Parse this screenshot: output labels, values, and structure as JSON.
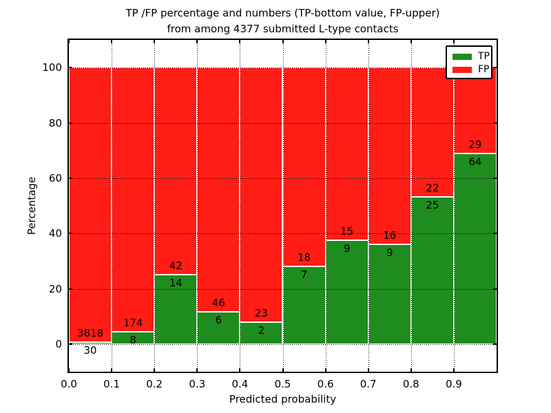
{
  "figure": {
    "title_line1": "TP /FP percentage and numbers (TP-bottom value, FP-upper)",
    "title_line2": "from among 4377 submitted L-type contacts"
  },
  "chart_data": {
    "type": "bar",
    "variant": "stacked-percentage",
    "title": "TP /FP percentage and numbers (TP-bottom value, FP-upper)\nfrom among 4377 submitted L-type contacts",
    "xlabel": "Predicted probability",
    "ylabel": "Percentage",
    "total_contacts": 4377,
    "bin_width": 0.1,
    "categories": [
      "0.0",
      "0.1",
      "0.2",
      "0.3",
      "0.4",
      "0.5",
      "0.6",
      "0.7",
      "0.8",
      "0.9"
    ],
    "series": [
      {
        "name": "TP",
        "color": "#1e8c1e",
        "counts": [
          30,
          8,
          14,
          6,
          2,
          7,
          9,
          9,
          25,
          64
        ]
      },
      {
        "name": "FP",
        "color": "#ff1d16",
        "counts": [
          3818,
          174,
          42,
          46,
          23,
          18,
          15,
          16,
          22,
          29
        ]
      }
    ],
    "tp_percent": [
      0.78,
      4.4,
      25.0,
      11.54,
      8.0,
      28.0,
      37.5,
      36.0,
      53.19,
      68.82
    ],
    "xticks": [
      "0.0",
      "0.1",
      "0.2",
      "0.3",
      "0.4",
      "0.5",
      "0.6",
      "0.7",
      "0.8",
      "0.9"
    ],
    "yticks": [
      0,
      20,
      40,
      60,
      80,
      100
    ],
    "xlim": [
      0.0,
      1.0
    ],
    "ylim": [
      -10,
      110
    ],
    "grid": "dotted",
    "legend": {
      "position": "upper-right",
      "entries": [
        {
          "label": "TP",
          "color": "#1e8c1e"
        },
        {
          "label": "FP",
          "color": "#ff1d16"
        }
      ]
    }
  }
}
